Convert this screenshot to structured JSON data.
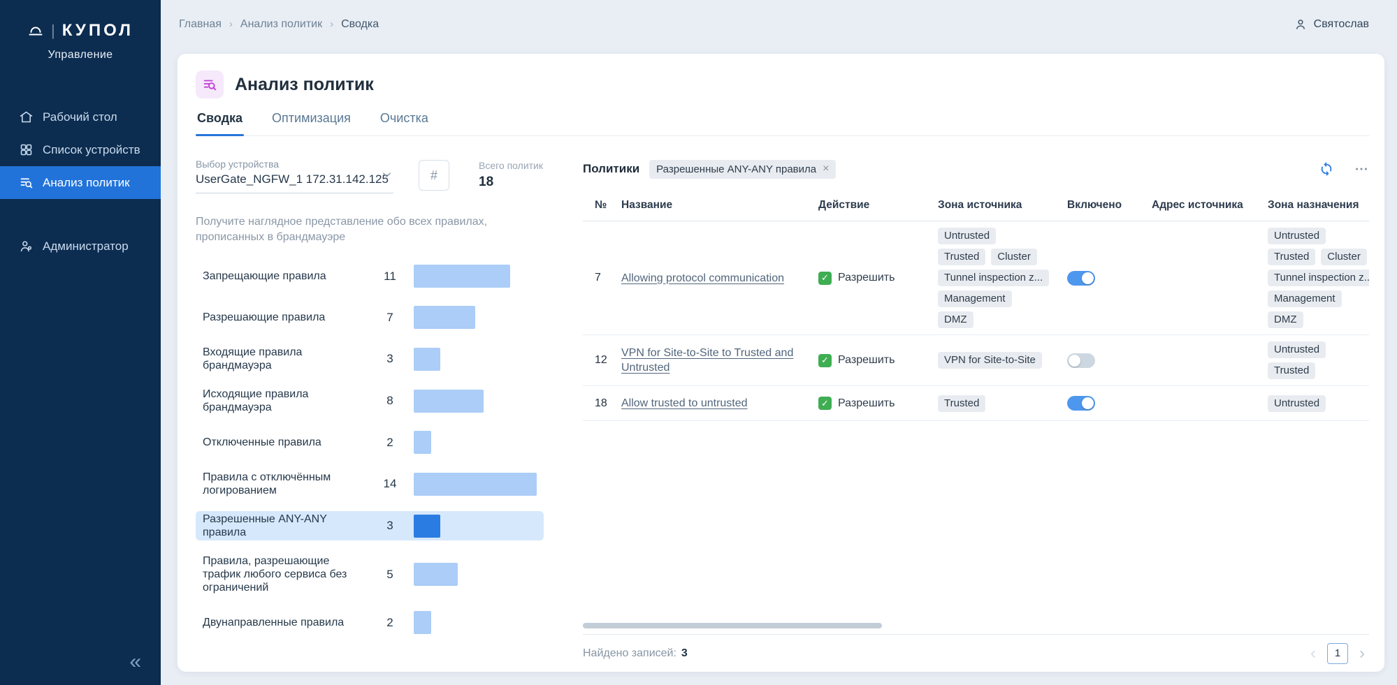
{
  "sidebar": {
    "brand": "КУПОЛ",
    "brand_divider": "|",
    "subtitle": "Управление",
    "items": [
      {
        "id": "desktop",
        "label": "Рабочий стол",
        "icon": "desktop-icon",
        "active": false,
        "section_break": false
      },
      {
        "id": "devices",
        "label": "Список устройств",
        "icon": "devices-icon",
        "active": false,
        "section_break": false
      },
      {
        "id": "policy-analysis",
        "label": "Анализ политик",
        "icon": "policy-analysis-icon",
        "active": true,
        "section_break": false
      },
      {
        "id": "administrator",
        "label": "Администратор",
        "icon": "admin-icon",
        "active": false,
        "section_break": true
      }
    ],
    "collapse_glyph": "«"
  },
  "header": {
    "breadcrumb": [
      "Главная",
      "Анализ политик",
      "Сводка"
    ],
    "separator_glyph": "›",
    "user_name": "Святослав"
  },
  "page": {
    "title": "Анализ политик",
    "tabs": [
      {
        "id": "summary",
        "label": "Сводка",
        "active": true
      },
      {
        "id": "optimization",
        "label": "Оптимизация",
        "active": false
      },
      {
        "id": "cleanup",
        "label": "Очистка",
        "active": false
      }
    ]
  },
  "summary": {
    "device_label": "Выбор устройства",
    "device_value": "UserGate_NGFW_1 172.31.142.125",
    "hash_symbol": "#",
    "total_label": "Всего политик",
    "total_value": "18",
    "description": "Получите наглядное представление обо всех правилах, прописанных в брандмауэре"
  },
  "chart_data": {
    "type": "bar",
    "orientation": "horizontal",
    "title": "",
    "xlabel": "",
    "ylabel": "",
    "xlim": [
      0,
      14
    ],
    "categories": [
      "Запрещающие правила",
      "Разрешающие правила",
      "Входящие правила брандмауэра",
      "Исходящие правила брандмауэра",
      "Отключенные правила",
      "Правила с отключённым логированием",
      "Разрешенные ANY-ANY правила",
      "Правила, разрешающие трафик любого сервиса без ограничений",
      "Двунаправленные правила"
    ],
    "values": [
      11,
      7,
      3,
      8,
      2,
      14,
      3,
      5,
      2
    ],
    "selected_index": 6,
    "selected_category": "Разрешенные ANY-ANY правила",
    "bar_color": "#abcdf7",
    "selected_bar_color": "#2b7ce2"
  },
  "policies": {
    "title": "Политики",
    "filter_chip": {
      "label": "Разрешенные ANY-ANY правила",
      "close_glyph": "×"
    },
    "columns": [
      "№",
      "Название",
      "Действие",
      "Зона источника",
      "Включено",
      "Адрес источника",
      "Зона назначения"
    ],
    "rows": [
      {
        "num": "7",
        "name": "Allowing protocol communication",
        "action": "Разрешить",
        "source_zones": [
          [
            "Untrusted"
          ],
          [
            "Trusted",
            "Cluster"
          ],
          [
            "Tunnel inspection z..."
          ],
          [
            "Management"
          ],
          [
            "DMZ"
          ]
        ],
        "enabled": true,
        "source_address": "",
        "dest_zones": [
          [
            "Untrusted"
          ],
          [
            "Trusted",
            "Cluster"
          ],
          [
            "Tunnel inspection z..."
          ],
          [
            "Management"
          ],
          [
            "DMZ"
          ]
        ]
      },
      {
        "num": "12",
        "name": "VPN for Site-to-Site to Trusted and Untrusted",
        "action": "Разрешить",
        "source_zones": [
          [
            "VPN for Site-to-Site"
          ]
        ],
        "enabled": false,
        "source_address": "",
        "dest_zones": [
          [
            "Untrusted"
          ],
          [
            "Trusted"
          ]
        ]
      },
      {
        "num": "18",
        "name": "Allow trusted to untrusted",
        "action": "Разрешить",
        "source_zones": [
          [
            "Trusted"
          ]
        ],
        "enabled": true,
        "source_address": "",
        "dest_zones": [
          [
            "Untrusted"
          ]
        ]
      }
    ],
    "footer": {
      "found_label": "Найдено записей:",
      "found_value": "3",
      "page": "1",
      "prev_glyph": "‹",
      "next_glyph": "›"
    }
  },
  "colors": {
    "accent": "#2676d9",
    "sidebar_bg": "#0c2c50",
    "active_item_bg": "#2273d9",
    "allow_green": "#3fae53",
    "selected_row_bg": "#d6e8fb"
  }
}
